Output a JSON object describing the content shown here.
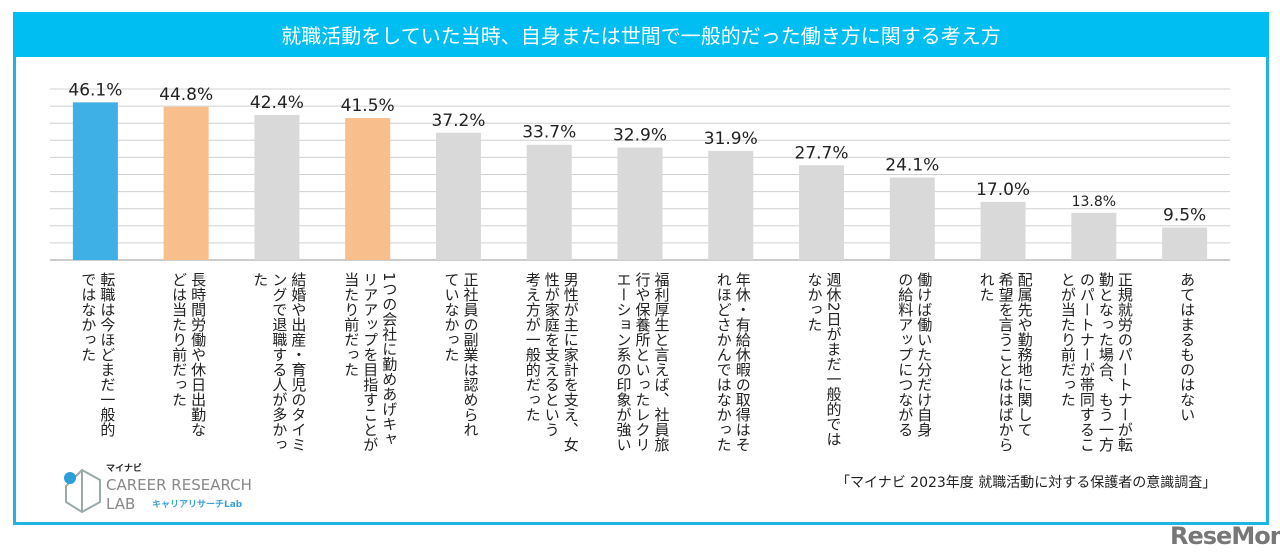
{
  "title": "就職活動をしていた当時、自身または世間で一般的だった働き方に関する考え方",
  "source": "「マイナビ 2023年度 就職活動に対する保護者の意識調査」",
  "logo": {
    "brand": "マイナビ",
    "line1": "CAREER RESEARCH",
    "line2": "LAB",
    "line3": "キャリアリサーチLab"
  },
  "watermark": "ReseMom",
  "colors": {
    "frame": "#1fb3e6",
    "title_bg": "#00bdf2",
    "highlight_blue": "#3fb0e6",
    "highlight_orange": "#f8bf8d",
    "default_bar": "#d9d9d9",
    "grid": "#d0d0d0"
  },
  "chart_data": {
    "type": "bar",
    "title": "就職活動をしていた当時、自身または世間で一般的だった働き方に関する考え方",
    "ylim": [
      0,
      50
    ],
    "grid": true,
    "categories": [
      [
        "転職は今ほどまだ一般的",
        "ではなかった"
      ],
      [
        "長時間労働や休日出勤な",
        "どは当たり前だった"
      ],
      [
        "結婚や出産・育児のタイミ",
        "ングで退職する人が多かっ",
        "た"
      ],
      [
        "1つの会社に勤めあげキャ",
        "リアアップを目指すことが",
        "当たり前だった"
      ],
      [
        "正社員の副業は認められ",
        "ていなかった"
      ],
      [
        "男性が主に家計を支え、女",
        "性が家庭を支えるという",
        "考え方が一般的だった"
      ],
      [
        "福利厚生と言えば、社員旅",
        "行や保養所といったレクリ",
        "エーション系の印象が強い"
      ],
      [
        "年休・有給休暇の取得はそ",
        "れほどさかんではなかった"
      ],
      [
        "週休2日がまだ一般的では",
        "なかった"
      ],
      [
        "働けば働いた分だけ自身",
        "の給料アップにつながる"
      ],
      [
        "配属先や勤務地に関して",
        "希望を言うことははばから",
        "れた"
      ],
      [
        "正規就労のパートナーが転",
        "勤となった場合、もう一方",
        "のパートナーが帯同するこ",
        "とが当たり前だった"
      ],
      [
        "あてはまるものはない"
      ]
    ],
    "values": [
      46.1,
      44.8,
      42.4,
      41.5,
      37.2,
      33.7,
      32.9,
      31.9,
      27.7,
      24.1,
      17.0,
      13.8,
      9.5
    ],
    "data_labels": [
      "46.1%",
      "44.8%",
      "42.4%",
      "41.5%",
      "37.2%",
      "33.7%",
      "32.9%",
      "31.9%",
      "27.7%",
      "24.1%",
      "17.0%",
      "13.8%",
      "9.5%"
    ],
    "bar_colors": [
      "#3fb0e6",
      "#f8bf8d",
      "#d9d9d9",
      "#f8bf8d",
      "#d9d9d9",
      "#d9d9d9",
      "#d9d9d9",
      "#d9d9d9",
      "#d9d9d9",
      "#d9d9d9",
      "#d9d9d9",
      "#d9d9d9",
      "#d9d9d9"
    ]
  }
}
